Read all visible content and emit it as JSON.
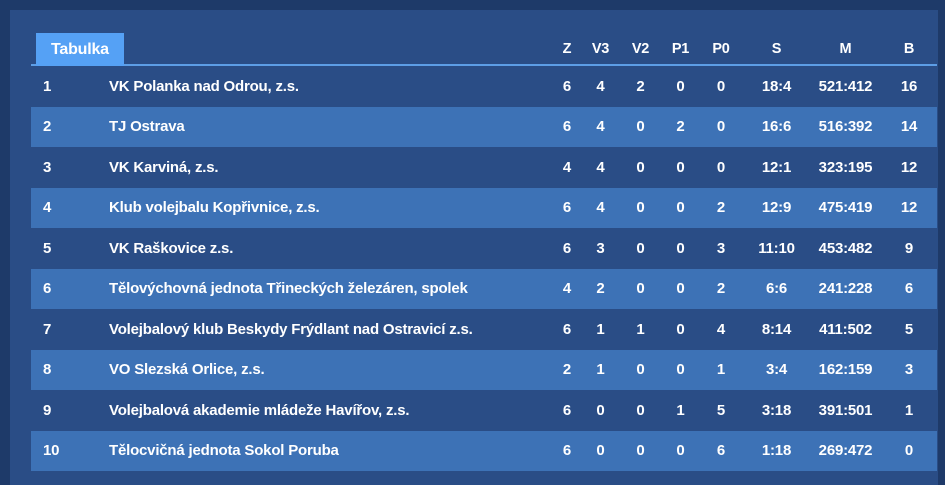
{
  "tab": {
    "label": "Tabulka"
  },
  "table": {
    "columns": [
      "Z",
      "V3",
      "V2",
      "P1",
      "P0",
      "S",
      "M",
      "B"
    ],
    "rows": [
      {
        "rank": "1",
        "team": "VK Polanka nad Odrou, z.s.",
        "z": "6",
        "v3": "4",
        "v2": "2",
        "p1": "0",
        "p0": "0",
        "s": "18:4",
        "m": "521:412",
        "b": "16"
      },
      {
        "rank": "2",
        "team": "TJ Ostrava",
        "z": "6",
        "v3": "4",
        "v2": "0",
        "p1": "2",
        "p0": "0",
        "s": "16:6",
        "m": "516:392",
        "b": "14"
      },
      {
        "rank": "3",
        "team": "VK Karviná, z.s.",
        "z": "4",
        "v3": "4",
        "v2": "0",
        "p1": "0",
        "p0": "0",
        "s": "12:1",
        "m": "323:195",
        "b": "12"
      },
      {
        "rank": "4",
        "team": "Klub volejbalu Kopřivnice, z.s.",
        "z": "6",
        "v3": "4",
        "v2": "0",
        "p1": "0",
        "p0": "2",
        "s": "12:9",
        "m": "475:419",
        "b": "12"
      },
      {
        "rank": "5",
        "team": "VK Raškovice z.s.",
        "z": "6",
        "v3": "3",
        "v2": "0",
        "p1": "0",
        "p0": "3",
        "s": "11:10",
        "m": "453:482",
        "b": "9"
      },
      {
        "rank": "6",
        "team": "Tělovýchovná jednota Třineckých železáren, spolek",
        "z": "4",
        "v3": "2",
        "v2": "0",
        "p1": "0",
        "p0": "2",
        "s": "6:6",
        "m": "241:228",
        "b": "6"
      },
      {
        "rank": "7",
        "team": "Volejbalový klub Beskydy Frýdlant nad Ostravicí z.s.",
        "z": "6",
        "v3": "1",
        "v2": "1",
        "p1": "0",
        "p0": "4",
        "s": "8:14",
        "m": "411:502",
        "b": "5"
      },
      {
        "rank": "8",
        "team": "VO Slezská Orlice, z.s.",
        "z": "2",
        "v3": "1",
        "v2": "0",
        "p1": "0",
        "p0": "1",
        "s": "3:4",
        "m": "162:159",
        "b": "3"
      },
      {
        "rank": "9",
        "team": "Volejbalová akademie mládeže Havířov, z.s.",
        "z": "6",
        "v3": "0",
        "v2": "0",
        "p1": "1",
        "p0": "5",
        "s": "3:18",
        "m": "391:501",
        "b": "1"
      },
      {
        "rank": "10",
        "team": "Tělocvičná jednota Sokol Poruba",
        "z": "6",
        "v3": "0",
        "v2": "0",
        "p1": "0",
        "p0": "6",
        "s": "1:18",
        "m": "269:472",
        "b": "0"
      }
    ]
  },
  "colors": {
    "outer_background": "#1e3a69",
    "panel_background": "#2a4d86",
    "row_alt_background": "#3d72b6",
    "tab_background": "#55a1f5",
    "header_underline": "#5d9ee6",
    "text_color": "#ffffff"
  }
}
